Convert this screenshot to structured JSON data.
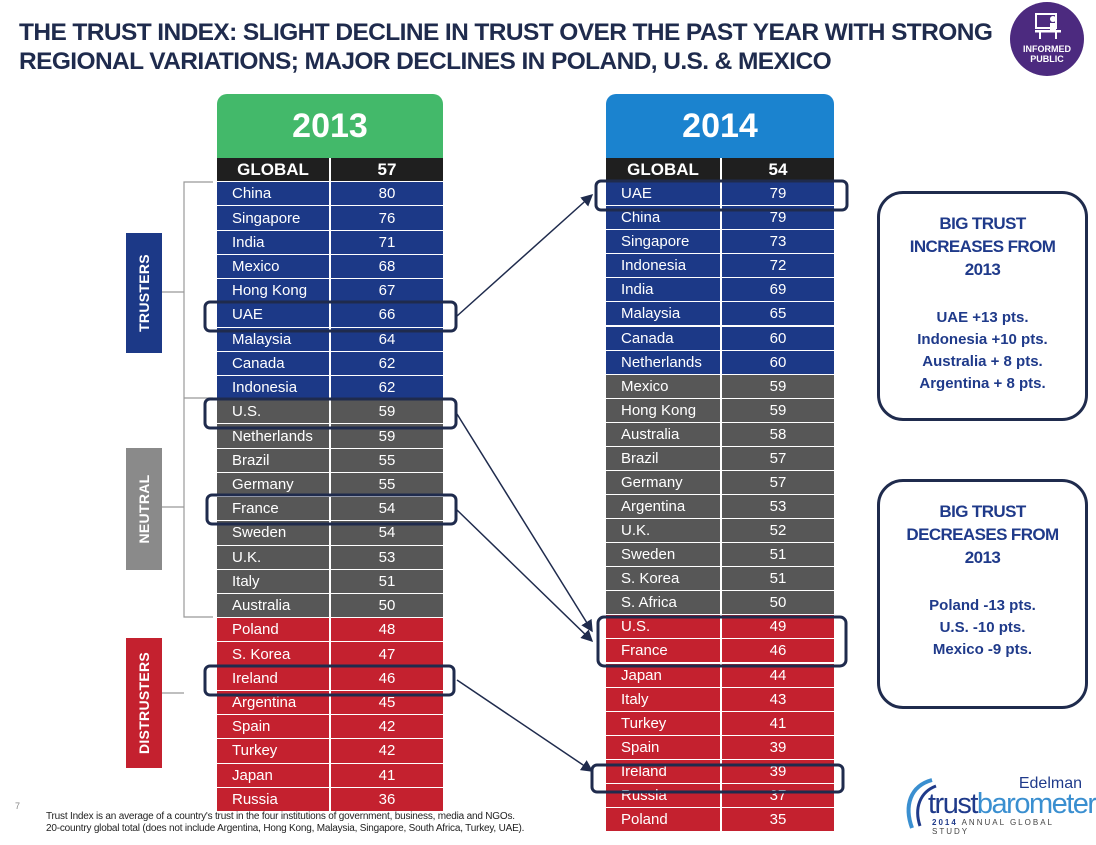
{
  "title": "THE TRUST INDEX: SLIGHT DECLINE IN TRUST OVER THE PAST YEAR WITH STRONG REGIONAL VARIATIONS; MAJOR DECLINES IN POLAND, U.S. & MEXICO",
  "badge": {
    "line1": "INFORMED",
    "line2": "PUBLIC"
  },
  "colors": {
    "trusters": "#1c3987",
    "neutral": "#575757",
    "distrusters": "#c4212f",
    "global": "#1f1f1f",
    "head2013": "#43b96a",
    "head2014": "#1b83cf",
    "outline": "#1f2b4d"
  },
  "tiers": {
    "trusters": "TRUSTERS",
    "neutral": "NEUTRAL",
    "distrusters": "DISTRUSTERS"
  },
  "callouts": {
    "increases": {
      "heading": [
        "BIG TRUST",
        "INCREASES FROM",
        "2013"
      ],
      "lines": [
        "UAE +13 pts.",
        "Indonesia +10 pts.",
        "Australia + 8 pts.",
        "Argentina + 8 pts."
      ]
    },
    "decreases": {
      "heading": [
        "BIG TRUST",
        "DECREASES FROM",
        "2013"
      ],
      "lines": [
        "Poland -13 pts.",
        "U.S. -10 pts.",
        "Mexico -9 pts."
      ]
    }
  },
  "footnote": {
    "line1": "Trust Index is an average of a country's trust in the four institutions of government, business, media and NGOs.",
    "line2": "20-country global total (does not include Argentina, Hong Kong, Malaysia, Singapore, South Africa, Turkey, UAE)."
  },
  "page_number": "7",
  "logo": {
    "brand": "Edelman",
    "name_part1": "trust",
    "name_part2": "barometer",
    "year": "2014",
    "subtitle": "ANNUAL GLOBAL STUDY"
  },
  "chart_data": {
    "type": "table",
    "title": "THE TRUST INDEX: SLIGHT DECLINE IN TRUST OVER THE PAST YEAR WITH STRONG REGIONAL VARIATIONS; MAJOR DECLINES IN POLAND, U.S. & MEXICO",
    "tables": [
      {
        "year": "2013",
        "global": {
          "label": "GLOBAL",
          "value": 57
        },
        "rows": [
          {
            "country": "China",
            "value": 80,
            "tier": "trusters"
          },
          {
            "country": "Singapore",
            "value": 76,
            "tier": "trusters"
          },
          {
            "country": "India",
            "value": 71,
            "tier": "trusters"
          },
          {
            "country": "Mexico",
            "value": 68,
            "tier": "trusters"
          },
          {
            "country": "Hong Kong",
            "value": 67,
            "tier": "trusters"
          },
          {
            "country": "UAE",
            "value": 66,
            "tier": "trusters"
          },
          {
            "country": "Malaysia",
            "value": 64,
            "tier": "trusters"
          },
          {
            "country": "Canada",
            "value": 62,
            "tier": "trusters"
          },
          {
            "country": "Indonesia",
            "value": 62,
            "tier": "trusters"
          },
          {
            "country": "U.S.",
            "value": 59,
            "tier": "neutral"
          },
          {
            "country": "Netherlands",
            "value": 59,
            "tier": "neutral"
          },
          {
            "country": "Brazil",
            "value": 55,
            "tier": "neutral"
          },
          {
            "country": "Germany",
            "value": 55,
            "tier": "neutral"
          },
          {
            "country": "France",
            "value": 54,
            "tier": "neutral"
          },
          {
            "country": "Sweden",
            "value": 54,
            "tier": "neutral"
          },
          {
            "country": "U.K.",
            "value": 53,
            "tier": "neutral"
          },
          {
            "country": "Italy",
            "value": 51,
            "tier": "neutral"
          },
          {
            "country": "Australia",
            "value": 50,
            "tier": "neutral"
          },
          {
            "country": "Poland",
            "value": 48,
            "tier": "distrusters"
          },
          {
            "country": "S. Korea",
            "value": 47,
            "tier": "distrusters"
          },
          {
            "country": "Ireland",
            "value": 46,
            "tier": "distrusters"
          },
          {
            "country": "Argentina",
            "value": 45,
            "tier": "distrusters"
          },
          {
            "country": "Spain",
            "value": 42,
            "tier": "distrusters"
          },
          {
            "country": "Turkey",
            "value": 42,
            "tier": "distrusters"
          },
          {
            "country": "Japan",
            "value": 41,
            "tier": "distrusters"
          },
          {
            "country": "Russia",
            "value": 36,
            "tier": "distrusters"
          }
        ]
      },
      {
        "year": "2014",
        "global": {
          "label": "GLOBAL",
          "value": 54
        },
        "rows": [
          {
            "country": "UAE",
            "value": 79,
            "tier": "trusters"
          },
          {
            "country": "China",
            "value": 79,
            "tier": "trusters"
          },
          {
            "country": "Singapore",
            "value": 73,
            "tier": "trusters"
          },
          {
            "country": "Indonesia",
            "value": 72,
            "tier": "trusters"
          },
          {
            "country": "India",
            "value": 69,
            "tier": "trusters"
          },
          {
            "country": "Malaysia",
            "value": 65,
            "tier": "trusters"
          },
          {
            "country": "Canada",
            "value": 60,
            "tier": "trusters"
          },
          {
            "country": "Netherlands",
            "value": 60,
            "tier": "trusters"
          },
          {
            "country": "Mexico",
            "value": 59,
            "tier": "neutral"
          },
          {
            "country": "Hong Kong",
            "value": 59,
            "tier": "neutral"
          },
          {
            "country": "Australia",
            "value": 58,
            "tier": "neutral"
          },
          {
            "country": "Brazil",
            "value": 57,
            "tier": "neutral"
          },
          {
            "country": "Germany",
            "value": 57,
            "tier": "neutral"
          },
          {
            "country": "Argentina",
            "value": 53,
            "tier": "neutral"
          },
          {
            "country": "U.K.",
            "value": 52,
            "tier": "neutral"
          },
          {
            "country": "Sweden",
            "value": 51,
            "tier": "neutral"
          },
          {
            "country": "S. Korea",
            "value": 51,
            "tier": "neutral"
          },
          {
            "country": "S. Africa",
            "value": 50,
            "tier": "neutral"
          },
          {
            "country": "U.S.",
            "value": 49,
            "tier": "distrusters"
          },
          {
            "country": "France",
            "value": 46,
            "tier": "distrusters"
          },
          {
            "country": "Japan",
            "value": 44,
            "tier": "distrusters"
          },
          {
            "country": "Italy",
            "value": 43,
            "tier": "distrusters"
          },
          {
            "country": "Turkey",
            "value": 41,
            "tier": "distrusters"
          },
          {
            "country": "Spain",
            "value": 39,
            "tier": "distrusters"
          },
          {
            "country": "Ireland",
            "value": 39,
            "tier": "distrusters"
          },
          {
            "country": "Russia",
            "value": 37,
            "tier": "distrusters"
          },
          {
            "country": "Poland",
            "value": 35,
            "tier": "distrusters"
          }
        ]
      }
    ],
    "highlighted_moves": [
      {
        "country": "UAE",
        "from": 66,
        "to": 79
      },
      {
        "country": "U.S.",
        "from": 59,
        "to": 49
      },
      {
        "country": "France",
        "from": 54,
        "to": 46
      },
      {
        "country": "Ireland",
        "from": 46,
        "to": 39
      }
    ]
  }
}
